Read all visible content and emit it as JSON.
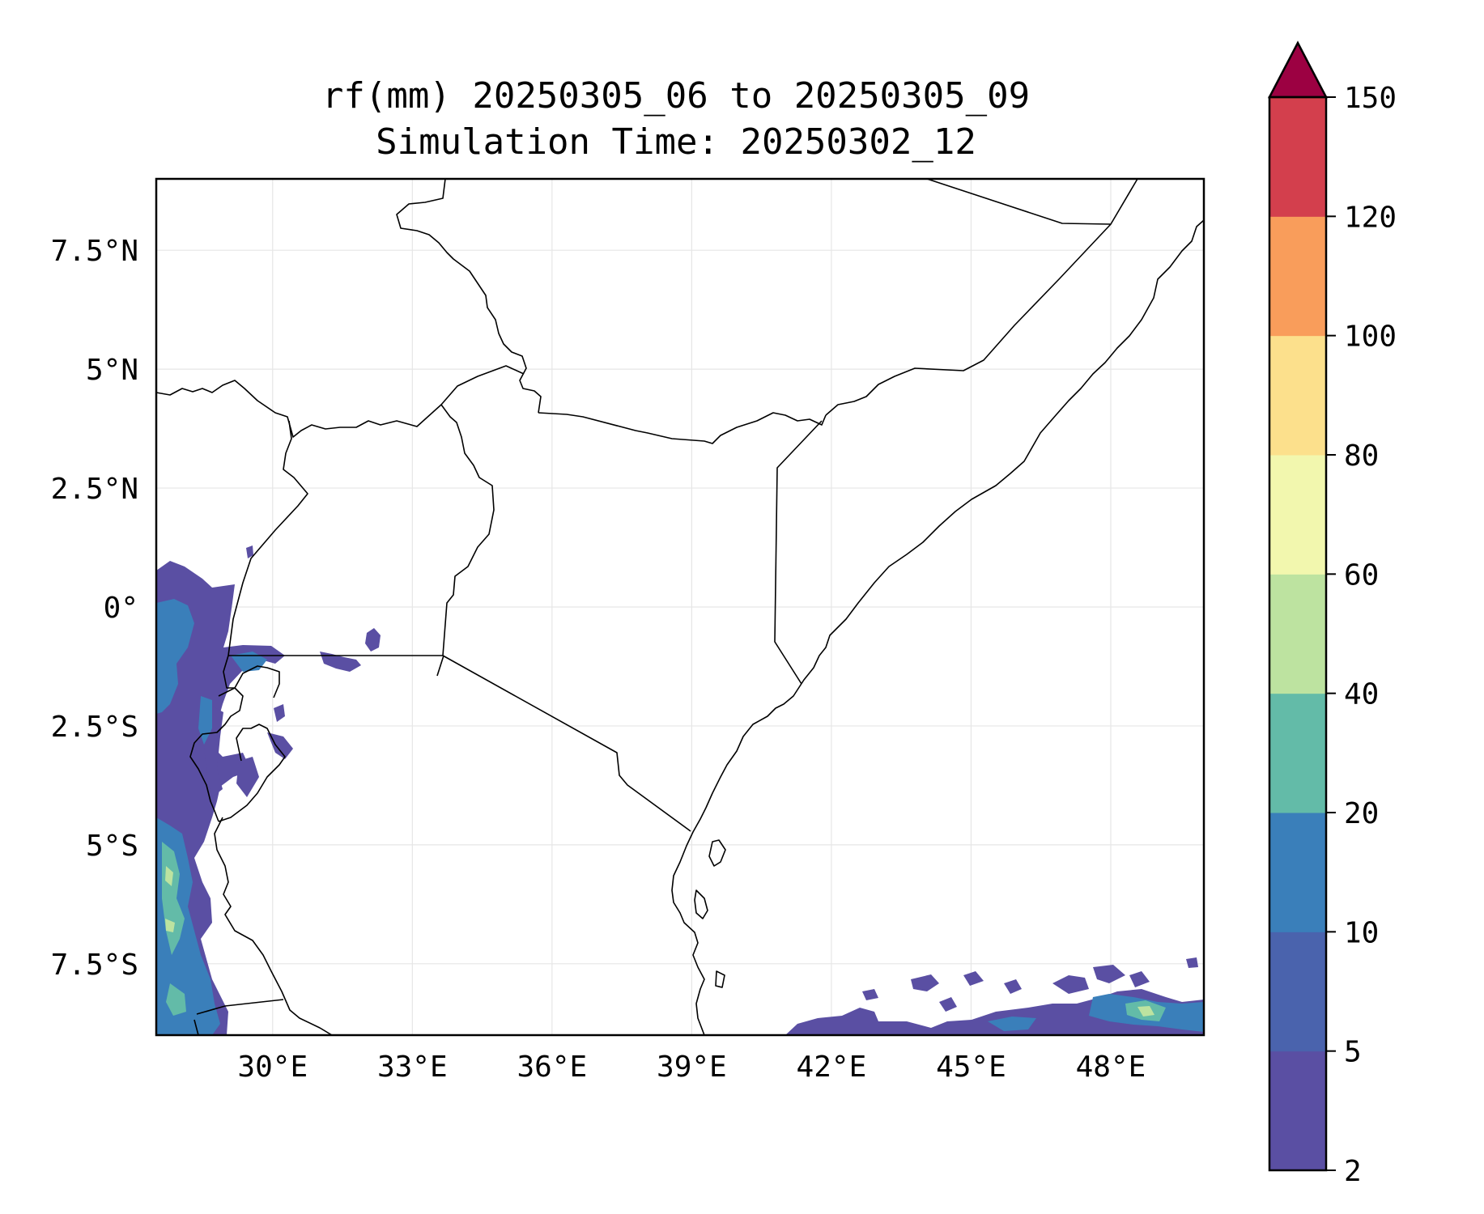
{
  "title_line1": "rf(mm) 20250305_06 to 20250305_09",
  "title_line2": "Simulation Time: 20250302_12",
  "map": {
    "lon_range": [
      27.5,
      50.0
    ],
    "lat_range": [
      -9.0,
      9.0
    ],
    "lon_ticks": [
      {
        "value": 30,
        "label": "30°E"
      },
      {
        "value": 33,
        "label": "33°E"
      },
      {
        "value": 36,
        "label": "36°E"
      },
      {
        "value": 39,
        "label": "39°E"
      },
      {
        "value": 42,
        "label": "42°E"
      },
      {
        "value": 45,
        "label": "45°E"
      },
      {
        "value": 48,
        "label": "48°E"
      }
    ],
    "lat_ticks": [
      {
        "value": 7.5,
        "label": "7.5°N"
      },
      {
        "value": 5,
        "label": "5°N"
      },
      {
        "value": 2.5,
        "label": "2.5°N"
      },
      {
        "value": 0,
        "label": "0°"
      },
      {
        "value": -2.5,
        "label": "2.5°S"
      },
      {
        "value": -5,
        "label": "5°S"
      },
      {
        "value": -7.5,
        "label": "7.5°S"
      }
    ],
    "gridlines": true
  },
  "colorbar": {
    "levels": [
      "2",
      "5",
      "10",
      "20",
      "40",
      "60",
      "80",
      "100",
      "120",
      "150"
    ],
    "colors": [
      "#5a4fa3",
      "#4a63ad",
      "#3a7fba",
      "#63bba8",
      "#bde3a0",
      "#f2f7ae",
      "#fce08c",
      "#f99d5b",
      "#d33f4d"
    ],
    "extend_color": "#9c0142",
    "extend": "max"
  }
}
